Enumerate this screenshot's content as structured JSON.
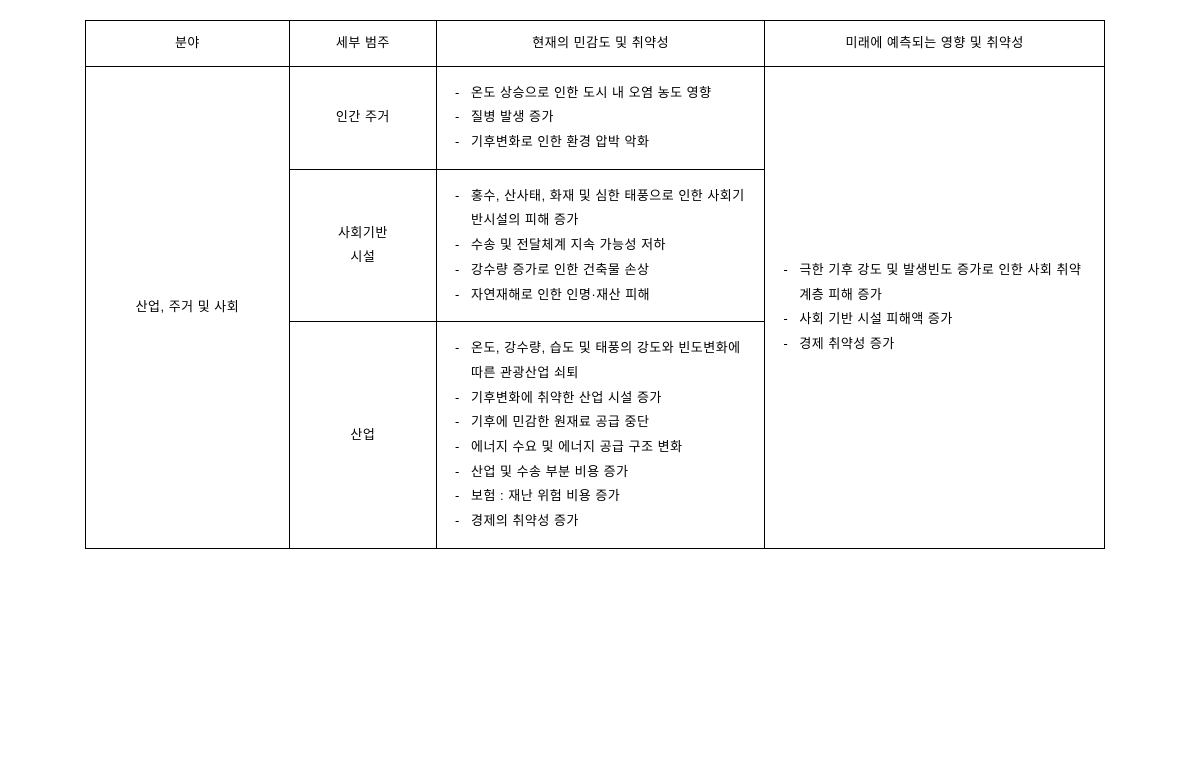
{
  "headers": {
    "col1": "분야",
    "col2": "세부 범주",
    "col3": "현재의 민감도 및 취약성",
    "col4": "미래에 예측되는 영향 및 취약성"
  },
  "domain": "산업, 주거 및 사회",
  "rows": [
    {
      "subcategory": "인간 주거",
      "current": [
        "온도 상승으로 인한 도시 내 오염 농도 영향",
        "질병 발생 증가",
        "기후변화로 인한 환경 압박 악화"
      ]
    },
    {
      "subcategory": "사회기반\n시설",
      "current": [
        "홍수, 산사태, 화재 및 심한 태풍으로 인한 사회기반시설의 피해 증가",
        "수송 및 전달체계 지속 가능성 저하",
        "강수량 증가로 인한 건축물 손상",
        "자연재해로 인한 인명·재산 피해"
      ]
    },
    {
      "subcategory": "산업",
      "current": [
        "온도, 강수량, 습도 및 태풍의 강도와 빈도변화에 따른 관광산업 쇠퇴",
        "기후변화에 취약한 산업 시설 증가",
        "기후에 민감한 원재료 공급 중단",
        "에너지 수요 및 에너지 공급 구조 변화",
        "산업 및 수송 부분 비용 증가",
        "보험 : 재난 위험 비용 증가",
        "경제의 취약성 증가"
      ]
    }
  ],
  "future": [
    "극한 기후 강도 및 발생빈도 증가로 인한 사회 취약 계층 피해 증가",
    "사회 기반 시설 피해액 증가",
    "경제 취약성 증가"
  ]
}
